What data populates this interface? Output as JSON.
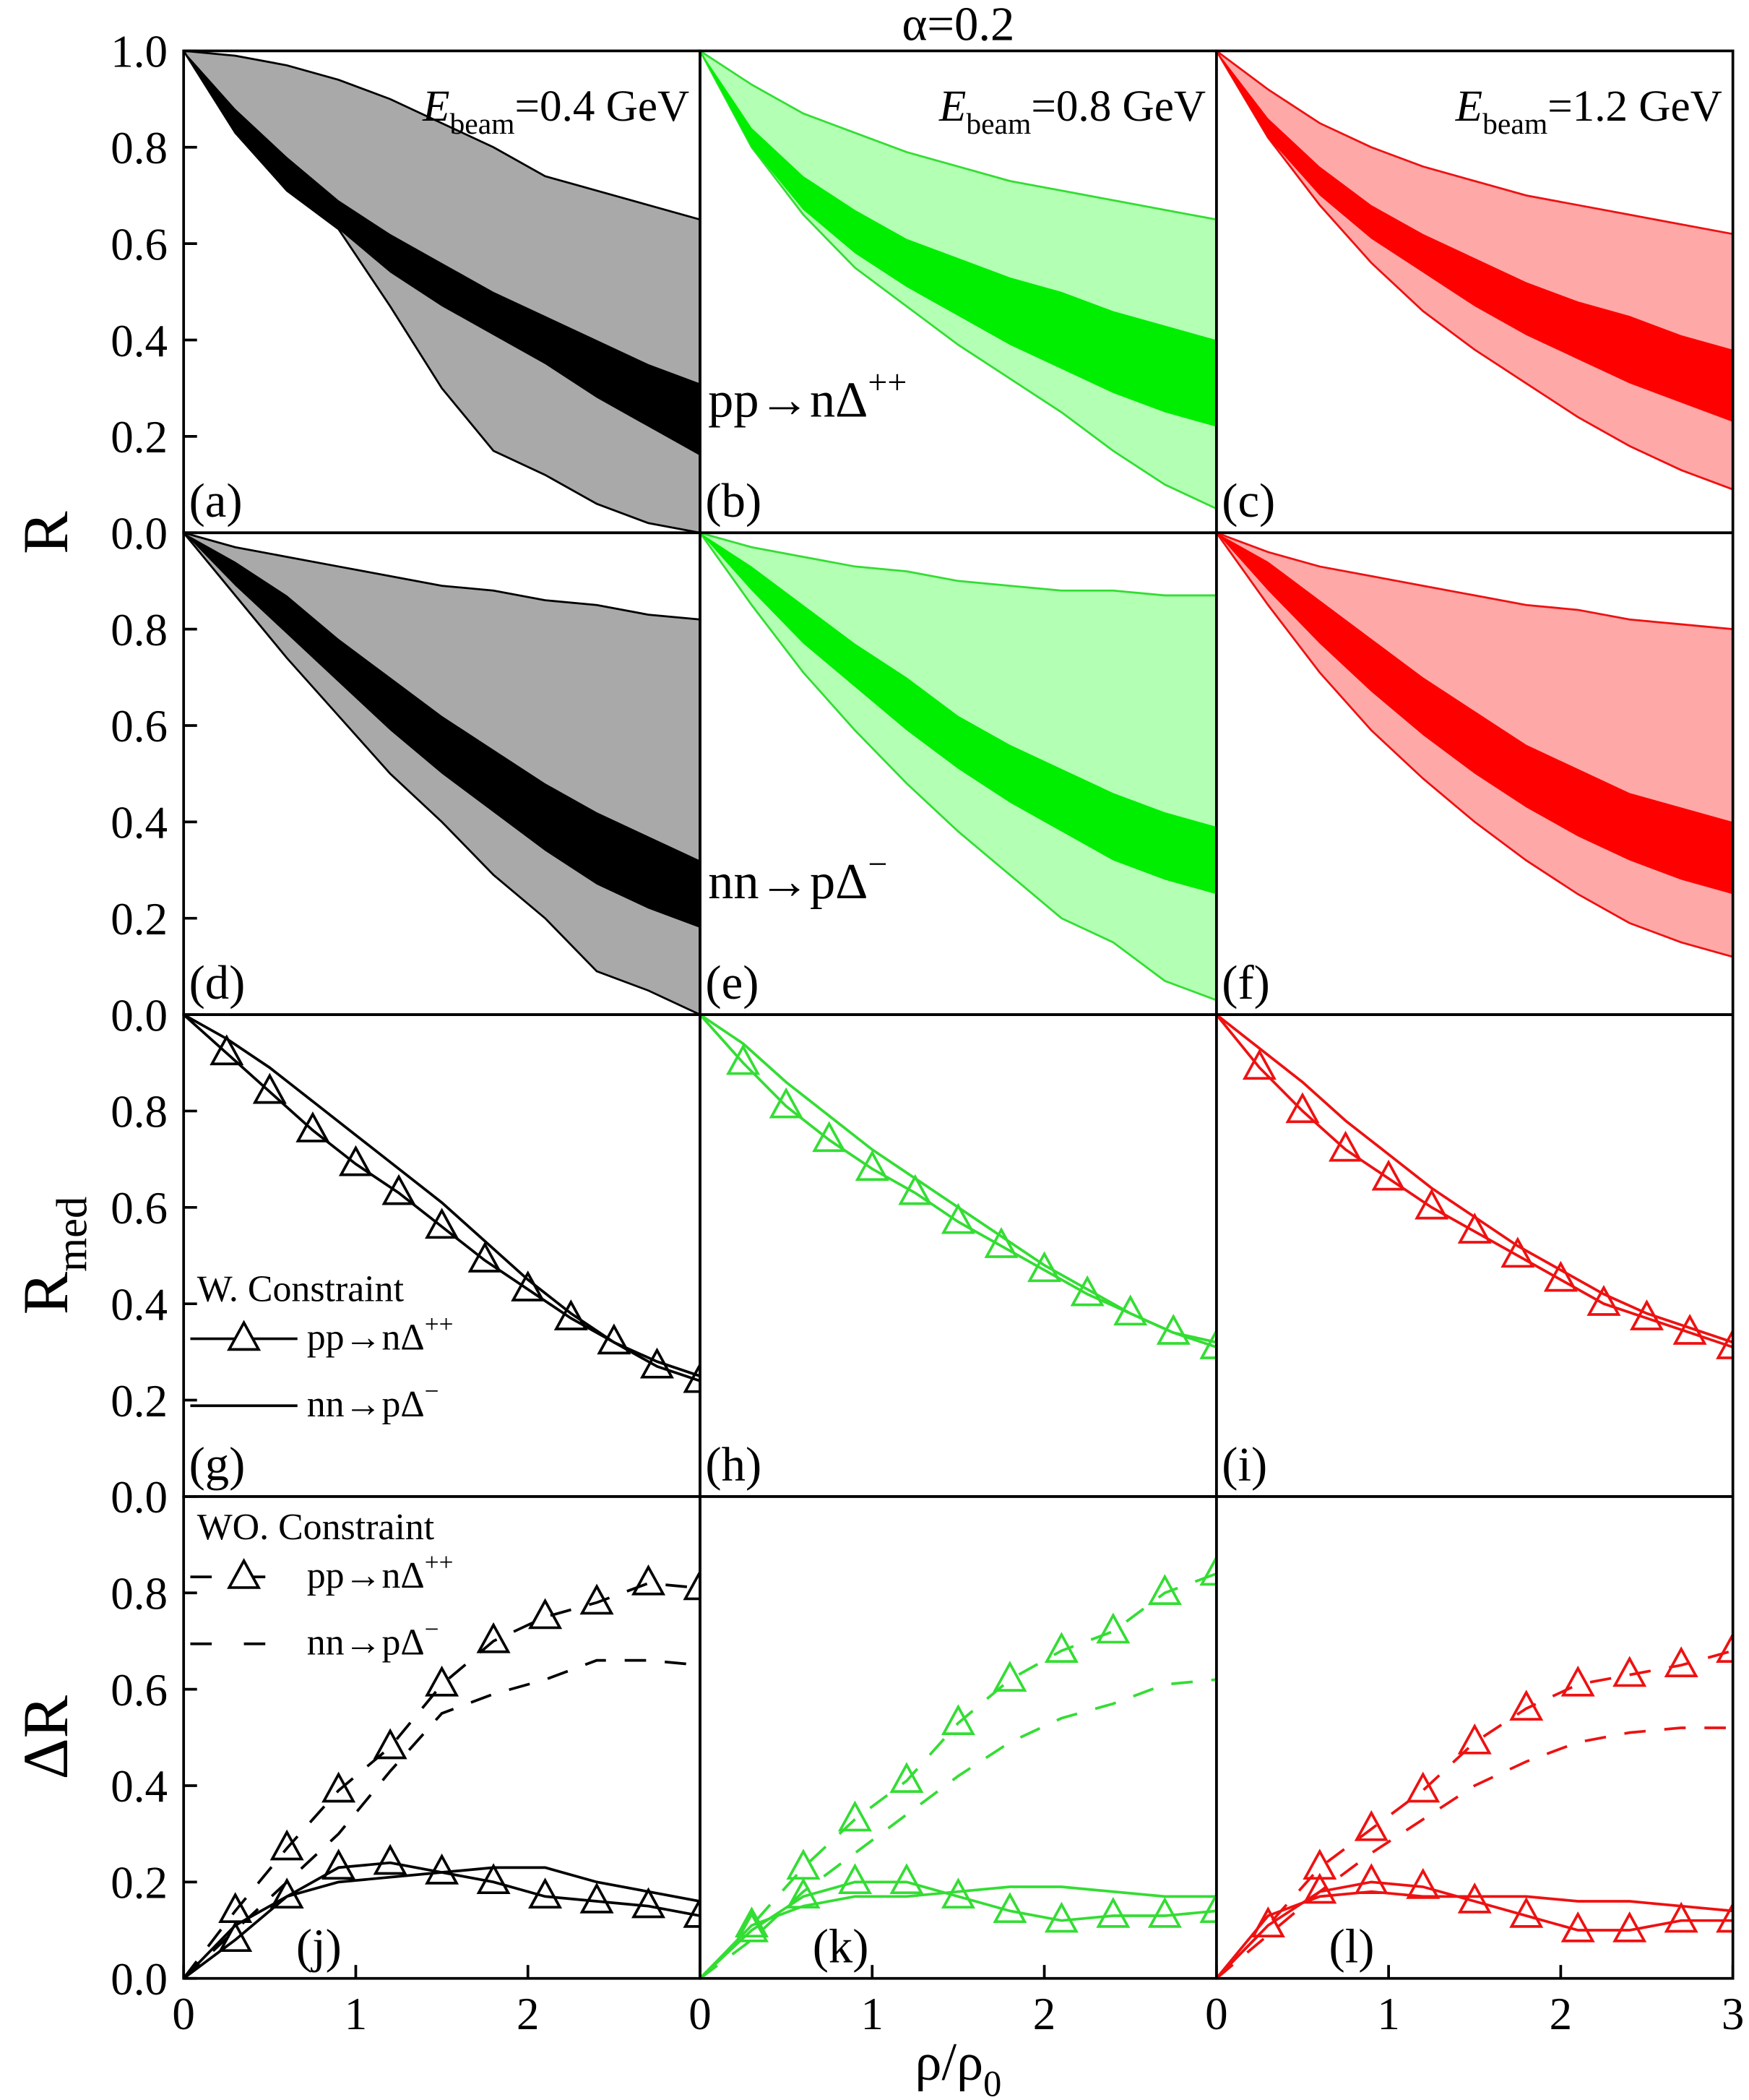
{
  "chart_data": [
    {
      "type": "band",
      "label": "(a)",
      "ylabel": "R",
      "energy": {
        "italic": "E",
        "sub": "beam",
        "text": "=0.4 GeV"
      },
      "xlim": [
        0,
        3
      ],
      "ylim": [
        0,
        1
      ],
      "yticks": [
        {
          "value": 0,
          "label": "0.0"
        },
        {
          "value": 0.2,
          "label": "0.2"
        },
        {
          "value": 0.4,
          "label": "0.4"
        },
        {
          "value": 0.6,
          "label": "0.6"
        },
        {
          "value": 0.8,
          "label": "0.8"
        },
        {
          "value": 1,
          "label": "1.0"
        }
      ],
      "x": [
        0,
        0.3,
        0.6,
        0.9,
        1.2,
        1.5,
        1.8,
        2.1,
        2.4,
        2.7,
        3
      ],
      "series": [
        {
          "color": "#a9a9a9",
          "edge_color": "#000000",
          "lower": [
            1.0,
            0.83,
            0.71,
            0.63,
            0.47,
            0.3,
            0.17,
            0.12,
            0.06,
            0.02,
            0.0
          ],
          "upper": [
            1.0,
            0.99,
            0.97,
            0.94,
            0.9,
            0.85,
            0.8,
            0.74,
            0.71,
            0.68,
            0.65
          ]
        },
        {
          "color": "#000000",
          "lower": [
            1.0,
            0.83,
            0.71,
            0.63,
            0.54,
            0.47,
            0.41,
            0.35,
            0.28,
            0.22,
            0.16
          ],
          "upper": [
            1.0,
            0.88,
            0.78,
            0.69,
            0.62,
            0.56,
            0.5,
            0.45,
            0.4,
            0.35,
            0.31
          ]
        }
      ]
    },
    {
      "type": "band",
      "label": "(b)",
      "title": "α=0.2",
      "energy": {
        "italic": "E",
        "sub": "beam",
        "text": "=0.8 GeV"
      },
      "reaction": {
        "text": "pp→nΔ",
        "sup": "++"
      },
      "xlim": [
        0,
        3
      ],
      "ylim": [
        0,
        1
      ],
      "x": [
        0,
        0.3,
        0.6,
        0.9,
        1.2,
        1.5,
        1.8,
        2.1,
        2.4,
        2.7,
        3
      ],
      "series": [
        {
          "color": "#b3ffb3",
          "edge_color": "#33dd33",
          "lower": [
            1.0,
            0.8,
            0.66,
            0.55,
            0.47,
            0.39,
            0.32,
            0.25,
            0.17,
            0.1,
            0.05
          ],
          "upper": [
            1.0,
            0.93,
            0.87,
            0.83,
            0.79,
            0.76,
            0.73,
            0.71,
            0.69,
            0.67,
            0.65
          ]
        },
        {
          "color": "#00ee00",
          "lower": [
            1.0,
            0.8,
            0.67,
            0.58,
            0.51,
            0.45,
            0.39,
            0.34,
            0.29,
            0.25,
            0.22
          ],
          "upper": [
            1.0,
            0.84,
            0.74,
            0.67,
            0.61,
            0.57,
            0.53,
            0.5,
            0.46,
            0.43,
            0.4
          ]
        }
      ]
    },
    {
      "type": "band",
      "label": "(c)",
      "energy": {
        "italic": "E",
        "sub": "beam",
        "text": "=1.2 GeV"
      },
      "xlim": [
        0,
        3
      ],
      "ylim": [
        0,
        1
      ],
      "x": [
        0,
        0.3,
        0.6,
        0.9,
        1.2,
        1.5,
        1.8,
        2.1,
        2.4,
        2.7,
        3
      ],
      "series": [
        {
          "color": "#ffa8a8",
          "edge_color": "#ee1111",
          "lower": [
            1.0,
            0.82,
            0.68,
            0.56,
            0.46,
            0.38,
            0.31,
            0.24,
            0.18,
            0.13,
            0.09
          ],
          "upper": [
            1.0,
            0.92,
            0.85,
            0.8,
            0.76,
            0.73,
            0.7,
            0.68,
            0.66,
            0.64,
            0.62
          ]
        },
        {
          "color": "#ff0000",
          "lower": [
            1.0,
            0.82,
            0.7,
            0.61,
            0.54,
            0.47,
            0.41,
            0.36,
            0.31,
            0.27,
            0.23
          ],
          "upper": [
            1.0,
            0.86,
            0.76,
            0.68,
            0.62,
            0.57,
            0.52,
            0.48,
            0.45,
            0.41,
            0.38
          ]
        }
      ]
    },
    {
      "type": "band",
      "label": "(d)",
      "xlim": [
        0,
        3
      ],
      "ylim": [
        0,
        1
      ],
      "yticks": [
        {
          "value": 0,
          "label": "0.0"
        },
        {
          "value": 0.2,
          "label": "0.2"
        },
        {
          "value": 0.4,
          "label": "0.4"
        },
        {
          "value": 0.6,
          "label": "0.6"
        },
        {
          "value": 0.8,
          "label": "0.8"
        }
      ],
      "x": [
        0,
        0.3,
        0.6,
        0.9,
        1.2,
        1.5,
        1.8,
        2.1,
        2.4,
        2.7,
        3
      ],
      "series": [
        {
          "color": "#a9a9a9",
          "edge_color": "#000000",
          "lower": [
            1.0,
            0.87,
            0.74,
            0.62,
            0.5,
            0.4,
            0.29,
            0.2,
            0.09,
            0.05,
            0.0
          ],
          "upper": [
            1.0,
            0.97,
            0.95,
            0.93,
            0.91,
            0.89,
            0.88,
            0.86,
            0.85,
            0.83,
            0.82
          ]
        },
        {
          "color": "#000000",
          "lower": [
            1.0,
            0.89,
            0.79,
            0.69,
            0.59,
            0.5,
            0.42,
            0.34,
            0.27,
            0.22,
            0.18
          ],
          "upper": [
            1.0,
            0.94,
            0.87,
            0.78,
            0.7,
            0.62,
            0.55,
            0.48,
            0.42,
            0.37,
            0.32
          ]
        }
      ]
    },
    {
      "type": "band",
      "label": "(e)",
      "reaction": {
        "text": "nn→pΔ",
        "sup": "−"
      },
      "xlim": [
        0,
        3
      ],
      "ylim": [
        0,
        1
      ],
      "x": [
        0,
        0.3,
        0.6,
        0.9,
        1.2,
        1.5,
        1.8,
        2.1,
        2.4,
        2.7,
        3
      ],
      "series": [
        {
          "color": "#b3ffb3",
          "edge_color": "#33dd33",
          "lower": [
            1.0,
            0.85,
            0.71,
            0.59,
            0.48,
            0.38,
            0.29,
            0.2,
            0.15,
            0.07,
            0.03
          ],
          "upper": [
            1.0,
            0.97,
            0.95,
            0.93,
            0.92,
            0.9,
            0.89,
            0.88,
            0.88,
            0.87,
            0.87
          ]
        },
        {
          "color": "#00ee00",
          "lower": [
            1.0,
            0.88,
            0.77,
            0.68,
            0.59,
            0.51,
            0.44,
            0.38,
            0.32,
            0.28,
            0.25
          ],
          "upper": [
            1.0,
            0.93,
            0.85,
            0.77,
            0.7,
            0.62,
            0.56,
            0.51,
            0.46,
            0.42,
            0.39
          ]
        }
      ]
    },
    {
      "type": "band",
      "label": "(f)",
      "xlim": [
        0,
        3
      ],
      "ylim": [
        0,
        1
      ],
      "x": [
        0,
        0.3,
        0.6,
        0.9,
        1.2,
        1.5,
        1.8,
        2.1,
        2.4,
        2.7,
        3
      ],
      "series": [
        {
          "color": "#ffa8a8",
          "edge_color": "#ee1111",
          "lower": [
            1.0,
            0.85,
            0.71,
            0.59,
            0.49,
            0.4,
            0.32,
            0.25,
            0.19,
            0.15,
            0.12
          ],
          "upper": [
            1.0,
            0.96,
            0.93,
            0.91,
            0.89,
            0.87,
            0.85,
            0.84,
            0.82,
            0.81,
            0.8
          ]
        },
        {
          "color": "#ff0000",
          "lower": [
            1.0,
            0.88,
            0.77,
            0.67,
            0.58,
            0.5,
            0.43,
            0.37,
            0.32,
            0.28,
            0.25
          ],
          "upper": [
            1.0,
            0.94,
            0.86,
            0.78,
            0.7,
            0.63,
            0.56,
            0.51,
            0.46,
            0.43,
            0.4
          ]
        }
      ]
    },
    {
      "type": "line",
      "label": "(g)",
      "ylabel": "R",
      "ylabel_sub": "med",
      "legend_title": "W. Constraint",
      "legend": "lower left",
      "xlim": [
        0,
        3
      ],
      "ylim": [
        0,
        1
      ],
      "yticks": [
        {
          "value": 0,
          "label": "0.0"
        },
        {
          "value": 0.2,
          "label": "0.2"
        },
        {
          "value": 0.4,
          "label": "0.4"
        },
        {
          "value": 0.6,
          "label": "0.6"
        },
        {
          "value": 0.8,
          "label": "0.8"
        }
      ],
      "x": [
        0,
        0.25,
        0.5,
        0.75,
        1,
        1.25,
        1.5,
        1.75,
        2,
        2.25,
        2.5,
        2.75,
        3
      ],
      "series": [
        {
          "name": "pp→nΔ",
          "name_sup": "++",
          "color": "#000000",
          "marker": "triangle",
          "dash": false,
          "values": [
            1.0,
            0.92,
            0.84,
            0.76,
            0.69,
            0.63,
            0.56,
            0.49,
            0.43,
            0.37,
            0.32,
            0.27,
            0.24
          ]
        },
        {
          "name": "nn→pΔ",
          "name_sup": "−",
          "color": "#000000",
          "marker": "none",
          "dash": false,
          "values": [
            1.0,
            0.95,
            0.89,
            0.82,
            0.75,
            0.68,
            0.61,
            0.53,
            0.45,
            0.38,
            0.32,
            0.28,
            0.25
          ]
        }
      ]
    },
    {
      "type": "line",
      "label": "(h)",
      "xlim": [
        0,
        3
      ],
      "ylim": [
        0,
        1
      ],
      "x": [
        0,
        0.25,
        0.5,
        0.75,
        1,
        1.25,
        1.5,
        1.75,
        2,
        2.25,
        2.5,
        2.75,
        3
      ],
      "series": [
        {
          "color": "#33dd33",
          "marker": "triangle",
          "dash": false,
          "values": [
            1.0,
            0.9,
            0.81,
            0.74,
            0.68,
            0.63,
            0.57,
            0.52,
            0.47,
            0.42,
            0.38,
            0.34,
            0.31
          ]
        },
        {
          "color": "#33dd33",
          "marker": "none",
          "dash": false,
          "values": [
            1.0,
            0.94,
            0.86,
            0.79,
            0.72,
            0.66,
            0.6,
            0.54,
            0.48,
            0.43,
            0.38,
            0.34,
            0.32
          ]
        }
      ]
    },
    {
      "type": "line",
      "label": "(i)",
      "xlim": [
        0,
        3
      ],
      "ylim": [
        0,
        1
      ],
      "x": [
        0,
        0.25,
        0.5,
        0.75,
        1,
        1.25,
        1.5,
        1.75,
        2,
        2.25,
        2.5,
        2.75,
        3
      ],
      "series": [
        {
          "color": "#ee1111",
          "marker": "triangle",
          "dash": false,
          "values": [
            1.0,
            0.89,
            0.8,
            0.72,
            0.66,
            0.6,
            0.55,
            0.5,
            0.45,
            0.4,
            0.37,
            0.34,
            0.31
          ]
        },
        {
          "color": "#ee1111",
          "marker": "none",
          "dash": false,
          "values": [
            1.0,
            0.93,
            0.86,
            0.78,
            0.71,
            0.64,
            0.58,
            0.52,
            0.47,
            0.42,
            0.38,
            0.35,
            0.32
          ]
        }
      ]
    },
    {
      "type": "line",
      "label": "(j)",
      "ylabel": "ΔR",
      "legend_title": "WO. Constraint",
      "legend": "upper left",
      "xlim": [
        0,
        3
      ],
      "ylim": [
        0,
        1
      ],
      "yticks": [
        {
          "value": 0,
          "label": "0.0"
        },
        {
          "value": 0.2,
          "label": "0.2"
        },
        {
          "value": 0.4,
          "label": "0.4"
        },
        {
          "value": 0.6,
          "label": "0.6"
        },
        {
          "value": 0.8,
          "label": "0.8"
        }
      ],
      "xticks": [
        0,
        1,
        2
      ],
      "x": [
        0,
        0.3,
        0.6,
        0.9,
        1.2,
        1.5,
        1.8,
        2.1,
        2.4,
        2.7,
        3
      ],
      "series": [
        {
          "name": "pp→nΔ",
          "name_sup": "++",
          "color": "#000000",
          "marker": "triangle",
          "dash": true,
          "values": [
            0.0,
            0.14,
            0.27,
            0.39,
            0.48,
            0.61,
            0.7,
            0.75,
            0.78,
            0.82,
            0.81
          ]
        },
        {
          "name": "nn→pΔ",
          "name_sup": "−",
          "color": "#000000",
          "marker": "none",
          "dash": true,
          "values": [
            0.0,
            0.1,
            0.2,
            0.3,
            0.43,
            0.55,
            0.59,
            0.62,
            0.66,
            0.66,
            0.65
          ]
        },
        {
          "color": "#000000",
          "marker": "triangle",
          "dash": false,
          "values": [
            0.0,
            0.08,
            0.17,
            0.23,
            0.24,
            0.22,
            0.2,
            0.17,
            0.16,
            0.15,
            0.13
          ]
        },
        {
          "color": "#000000",
          "marker": "none",
          "dash": false,
          "values": [
            0.0,
            0.11,
            0.17,
            0.2,
            0.21,
            0.22,
            0.23,
            0.23,
            0.2,
            0.18,
            0.16
          ]
        }
      ]
    },
    {
      "type": "line",
      "label": "(k)",
      "xlabel": "ρ/ρ",
      "xlabel_sub": "0",
      "xlim": [
        0,
        3
      ],
      "ylim": [
        0,
        1
      ],
      "xticks": [
        0,
        1,
        2
      ],
      "x": [
        0,
        0.3,
        0.6,
        0.9,
        1.2,
        1.5,
        1.8,
        2.1,
        2.4,
        2.7,
        3
      ],
      "series": [
        {
          "color": "#33dd33",
          "marker": "triangle",
          "dash": true,
          "values": [
            0.0,
            0.11,
            0.23,
            0.33,
            0.41,
            0.53,
            0.62,
            0.68,
            0.72,
            0.8,
            0.84
          ]
        },
        {
          "color": "#33dd33",
          "marker": "none",
          "dash": true,
          "values": [
            0.0,
            0.08,
            0.18,
            0.26,
            0.34,
            0.42,
            0.49,
            0.54,
            0.57,
            0.61,
            0.62
          ]
        },
        {
          "color": "#33dd33",
          "marker": "triangle",
          "dash": false,
          "values": [
            0.0,
            0.1,
            0.17,
            0.2,
            0.2,
            0.17,
            0.14,
            0.12,
            0.13,
            0.13,
            0.14
          ]
        },
        {
          "color": "#33dd33",
          "marker": "none",
          "dash": false,
          "values": [
            0.0,
            0.11,
            0.15,
            0.17,
            0.17,
            0.18,
            0.19,
            0.19,
            0.18,
            0.17,
            0.17
          ]
        }
      ]
    },
    {
      "type": "line",
      "label": "(l)",
      "xlim": [
        0,
        3
      ],
      "ylim": [
        0,
        1
      ],
      "xticks": [
        0,
        1,
        2,
        3
      ],
      "x": [
        0,
        0.3,
        0.6,
        0.9,
        1.2,
        1.5,
        1.8,
        2.1,
        2.4,
        2.7,
        3
      ],
      "series": [
        {
          "color": "#ee1111",
          "marker": "triangle",
          "dash": true,
          "values": [
            0.0,
            0.11,
            0.23,
            0.31,
            0.39,
            0.49,
            0.56,
            0.61,
            0.63,
            0.65,
            0.68
          ]
        },
        {
          "color": "#ee1111",
          "marker": "none",
          "dash": true,
          "values": [
            0.0,
            0.09,
            0.18,
            0.26,
            0.33,
            0.4,
            0.45,
            0.49,
            0.51,
            0.52,
            0.52
          ]
        },
        {
          "color": "#ee1111",
          "marker": "triangle",
          "dash": false,
          "values": [
            0.0,
            0.11,
            0.18,
            0.2,
            0.19,
            0.16,
            0.13,
            0.1,
            0.1,
            0.12,
            0.12
          ]
        },
        {
          "color": "#ee1111",
          "marker": "none",
          "dash": false,
          "values": [
            0.0,
            0.13,
            0.17,
            0.18,
            0.17,
            0.17,
            0.17,
            0.16,
            0.16,
            0.15,
            0.14
          ]
        }
      ]
    }
  ]
}
